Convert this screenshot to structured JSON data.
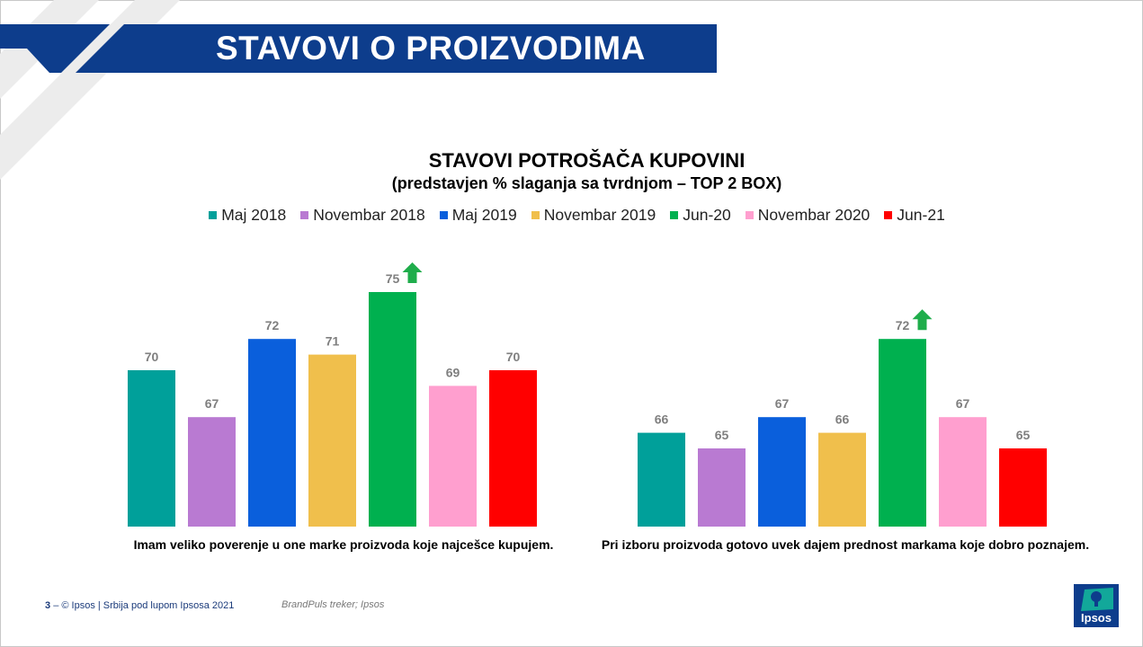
{
  "header": {
    "title": "STAVOVI O PROIZVODIMA"
  },
  "colors": {
    "banner": "#0d3d8c",
    "arrow": "#1fad4b",
    "series": [
      "#00a09a",
      "#b97ad2",
      "#0a5fdc",
      "#f0bf4c",
      "#00b04f",
      "#ff9fcf",
      "#ff0000"
    ]
  },
  "chart_data": {
    "type": "bar",
    "title": "STAVOVI POTROŠAČA KUPOVINI",
    "subtitle": "(predstavjen % slaganja sa tvrdnjom – TOP 2 BOX)",
    "categories": [
      "Imam veliko poverenje u one marke proizvoda koje najcešce kupujem.",
      "Pri izboru proizvoda gotovo uvek dajem prednost markama koje dobro poznajem."
    ],
    "series": [
      {
        "name": "Maj 2018",
        "values": [
          70,
          66
        ]
      },
      {
        "name": "Novembar 2018",
        "values": [
          67,
          65
        ]
      },
      {
        "name": "Maj 2019",
        "values": [
          72,
          67
        ]
      },
      {
        "name": "Novembar 2019",
        "values": [
          71,
          66
        ]
      },
      {
        "name": "Jun-20",
        "values": [
          75,
          72
        ]
      },
      {
        "name": "Novembar 2020",
        "values": [
          69,
          67
        ]
      },
      {
        "name": "Jun-21",
        "values": [
          70,
          65
        ]
      }
    ],
    "annotations": [
      {
        "series": "Jun-20",
        "category_index": 0,
        "marker": "up-arrow-icon"
      },
      {
        "series": "Jun-20",
        "category_index": 1,
        "marker": "up-arrow-icon"
      }
    ],
    "legend_position": "top",
    "grid": false,
    "ylim": [
      60,
      75
    ]
  },
  "footer": {
    "page_number": "3",
    "separator": "–",
    "copyright": "© Ipsos | Srbija pod lupom Ipsosa 2021",
    "source": "BrandPuls treker; Ipsos"
  },
  "logo": {
    "text": "Ipsos"
  }
}
